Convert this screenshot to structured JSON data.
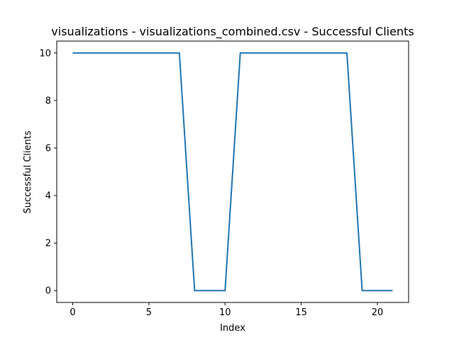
{
  "chart_data": {
    "type": "line",
    "title": "visualizations - visualizations_combined.csv - Successful Clients",
    "xlabel": "Index",
    "ylabel": "Successful Clients",
    "xlim": [
      -1.05,
      22.05
    ],
    "ylim": [
      -0.5,
      10.5
    ],
    "x_ticks": [
      0,
      5,
      10,
      15,
      20
    ],
    "y_ticks": [
      0,
      2,
      4,
      6,
      8,
      10
    ],
    "grid": false,
    "legend": "none",
    "line_color": "#1f77b4",
    "series": [
      {
        "x": [
          0,
          1,
          2,
          3,
          4,
          5,
          6,
          7,
          8,
          9,
          10,
          11,
          12,
          13,
          14,
          15,
          16,
          17,
          18,
          19,
          20,
          21
        ],
        "values": [
          10,
          10,
          10,
          10,
          10,
          10,
          10,
          10,
          0,
          0,
          0,
          10,
          10,
          10,
          10,
          10,
          10,
          10,
          10,
          0,
          0,
          0
        ]
      }
    ]
  }
}
